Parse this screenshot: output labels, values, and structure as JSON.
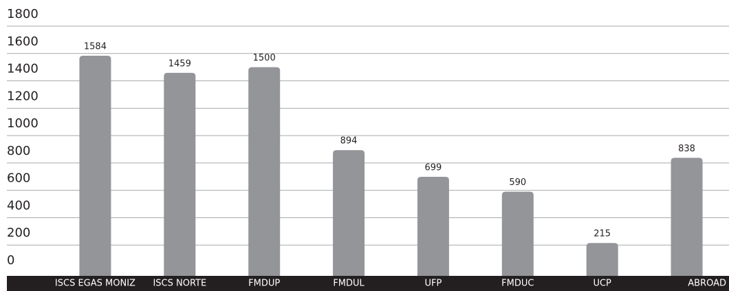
{
  "chart_data": {
    "type": "bar",
    "categories": [
      "ISCS EGAS MONIZ",
      "ISCS NORTE",
      "FMDUP",
      "FMDUL",
      "UFP",
      "FMDUC",
      "UCP",
      "ABROAD"
    ],
    "values": [
      1584,
      1459,
      1500,
      894,
      699,
      590,
      215,
      838
    ],
    "color": "#939598",
    "ylim": [
      0,
      1800
    ],
    "yticks": [
      0,
      200,
      400,
      600,
      800,
      1000,
      1200,
      1400,
      1600,
      1800
    ],
    "grid": true
  }
}
